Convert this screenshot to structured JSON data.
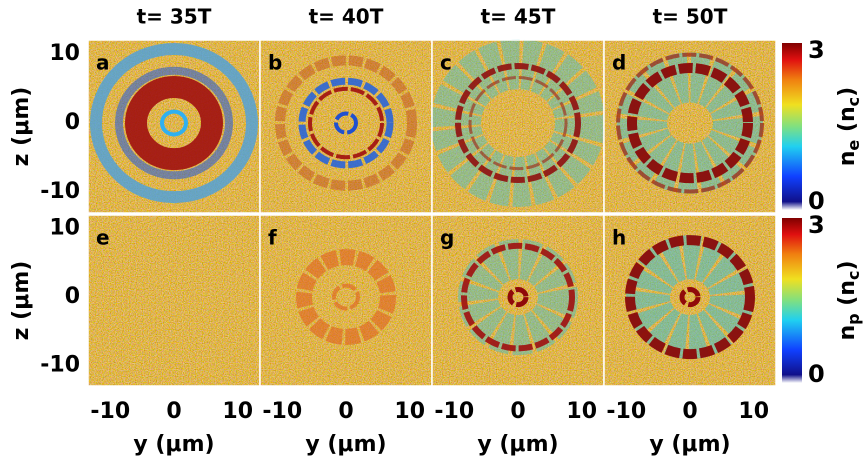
{
  "chart_data": [
    {
      "type": "heatmap",
      "title": "t= 35T",
      "panel_label": "a",
      "xlim": [
        -13.5,
        13.5
      ],
      "ylim": [
        -13,
        12
      ],
      "yticks": [
        10,
        0,
        -10
      ],
      "ylabel": "z (μm)"
    },
    {
      "type": "heatmap",
      "title": "t= 40T",
      "panel_label": "b",
      "xlim": [
        -13.5,
        13.5
      ],
      "ylim": [
        -13,
        12
      ]
    },
    {
      "type": "heatmap",
      "title": "t= 45T",
      "panel_label": "c",
      "xlim": [
        -13.5,
        13.5
      ],
      "ylim": [
        -13,
        12
      ]
    },
    {
      "type": "heatmap",
      "title": "t= 50T",
      "panel_label": "d",
      "xlim": [
        -13.5,
        13.5
      ],
      "ylim": [
        -13,
        12
      ],
      "colorbar": {
        "lim": [
          0,
          3
        ],
        "ticks": [
          0,
          3
        ],
        "label": [
          "n",
          "e",
          " (n",
          "c",
          ")"
        ]
      }
    },
    {
      "type": "heatmap",
      "panel_label": "e",
      "xlim": [
        -13.5,
        13.5
      ],
      "ylim": [
        -13,
        12
      ],
      "xticks": [
        -10,
        0,
        10
      ],
      "yticks": [
        10,
        0,
        -10
      ],
      "xlabel": "y (μm)",
      "ylabel": "z (μm)"
    },
    {
      "type": "heatmap",
      "panel_label": "f",
      "xlim": [
        -13.5,
        13.5
      ],
      "ylim": [
        -13,
        12
      ],
      "xticks": [
        -10,
        0,
        10
      ],
      "xlabel": "y (μm)"
    },
    {
      "type": "heatmap",
      "panel_label": "g",
      "xlim": [
        -13.5,
        13.5
      ],
      "ylim": [
        -13,
        12
      ],
      "xticks": [
        -10,
        0,
        10
      ],
      "xlabel": "y (μm)"
    },
    {
      "type": "heatmap",
      "panel_label": "h",
      "xlim": [
        -13.5,
        13.5
      ],
      "ylim": [
        -13,
        12
      ],
      "xticks": [
        -10,
        0,
        10
      ],
      "xlabel": "y (μm)",
      "colorbar": {
        "lim": [
          0,
          3
        ],
        "ticks": [
          0,
          3
        ],
        "label": [
          "n",
          "p",
          " (n",
          "c",
          ")"
        ]
      }
    }
  ]
}
